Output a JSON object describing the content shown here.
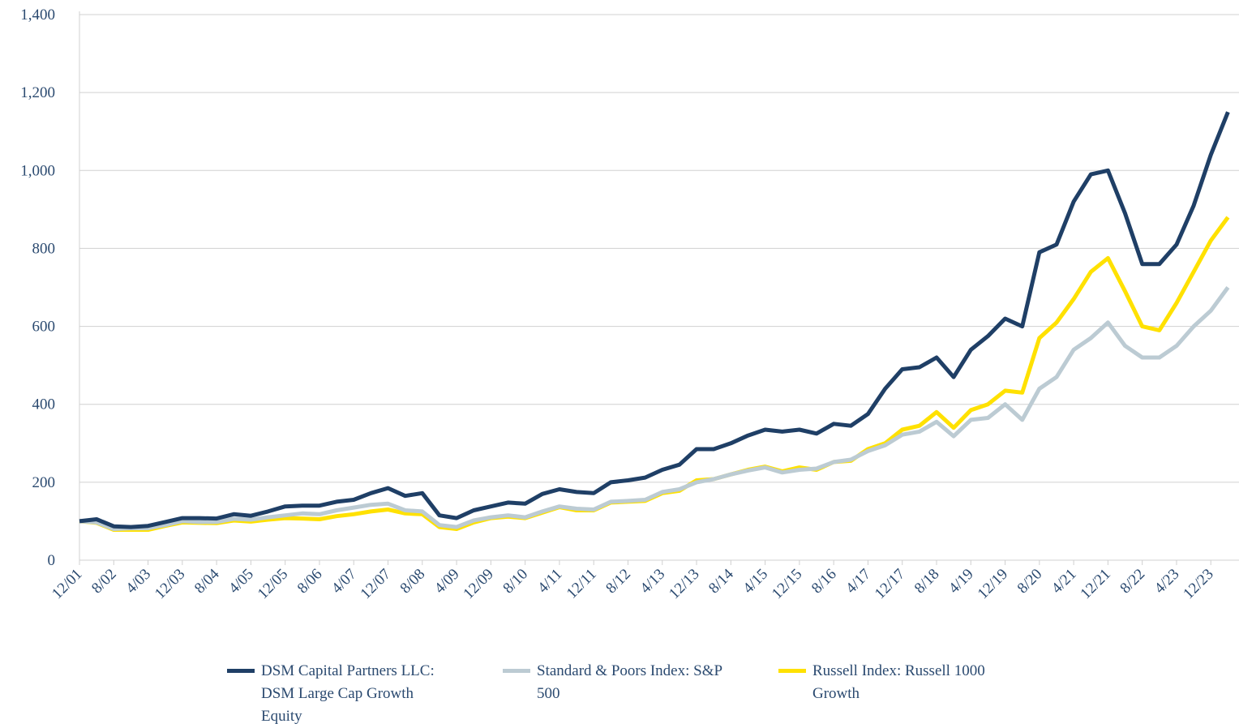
{
  "chart_data": {
    "type": "line",
    "categories": [
      "12/01",
      null,
      "8/02",
      null,
      "4/03",
      null,
      "12/03",
      null,
      "8/04",
      null,
      "4/05",
      null,
      "12/05",
      null,
      "8/06",
      null,
      "4/07",
      null,
      "12/07",
      null,
      "8/08",
      null,
      "4/09",
      null,
      "12/09",
      null,
      "8/10",
      null,
      "4/11",
      null,
      "12/11",
      null,
      "8/12",
      null,
      "4/13",
      null,
      "12/13",
      null,
      "8/14",
      null,
      "4/15",
      null,
      "12/15",
      null,
      "8/16",
      null,
      "4/17",
      null,
      "12/17",
      null,
      "8/18",
      null,
      "4/19",
      null,
      "12/19",
      null,
      "8/20",
      null,
      "4/21",
      null,
      "12/21",
      null,
      "8/22",
      null,
      "4/23",
      null,
      "12/23",
      null
    ],
    "series": [
      {
        "name": "DSM Capital Partners LLC: DSM Large Cap Growth Equity",
        "color": "#1f3f66",
        "values": [
          100,
          105,
          87,
          85,
          88,
          98,
          108,
          108,
          107,
          118,
          114,
          125,
          138,
          140,
          140,
          150,
          155,
          172,
          185,
          165,
          172,
          115,
          108,
          128,
          138,
          148,
          145,
          170,
          182,
          175,
          172,
          200,
          205,
          212,
          232,
          245,
          285,
          285,
          300,
          320,
          335,
          330,
          335,
          325,
          350,
          345,
          375,
          440,
          490,
          495,
          520,
          470,
          540,
          575,
          620,
          600,
          790,
          810,
          920,
          990,
          1000,
          890,
          760,
          760,
          810,
          910,
          1040,
          1150
        ]
      },
      {
        "name": "Standard & Poors Index: S&P 500",
        "color": "#bccbd3",
        "values": [
          100,
          97,
          80,
          82,
          82,
          90,
          100,
          98,
          98,
          106,
          104,
          110,
          115,
          120,
          118,
          128,
          135,
          142,
          145,
          128,
          125,
          90,
          85,
          102,
          110,
          115,
          110,
          125,
          138,
          132,
          130,
          150,
          152,
          155,
          175,
          182,
          200,
          208,
          220,
          230,
          238,
          225,
          232,
          235,
          252,
          258,
          280,
          295,
          322,
          330,
          355,
          318,
          360,
          365,
          400,
          360,
          440,
          470,
          540,
          570,
          610,
          550,
          520,
          520,
          550,
          600,
          640,
          700
        ]
      },
      {
        "name": "Russell Index: Russell 1000 Growth",
        "color": "#ffe100",
        "values": [
          100,
          96,
          78,
          78,
          78,
          88,
          97,
          96,
          95,
          102,
          99,
          104,
          108,
          107,
          105,
          113,
          118,
          125,
          130,
          120,
          118,
          85,
          80,
          97,
          108,
          112,
          108,
          122,
          136,
          128,
          128,
          148,
          150,
          152,
          172,
          178,
          205,
          208,
          220,
          232,
          240,
          228,
          238,
          232,
          252,
          255,
          285,
          300,
          335,
          345,
          380,
          340,
          385,
          400,
          435,
          430,
          570,
          610,
          670,
          740,
          775,
          690,
          600,
          590,
          660,
          740,
          820,
          880
        ]
      }
    ],
    "ylim": [
      0,
      1400
    ],
    "yticks": [
      0,
      200,
      400,
      600,
      800,
      {
        "value": 1000,
        "label": "1,000"
      },
      {
        "value": 1200,
        "label": "1,200"
      },
      {
        "value": 1400,
        "label": "1,400"
      }
    ],
    "grid": true
  }
}
